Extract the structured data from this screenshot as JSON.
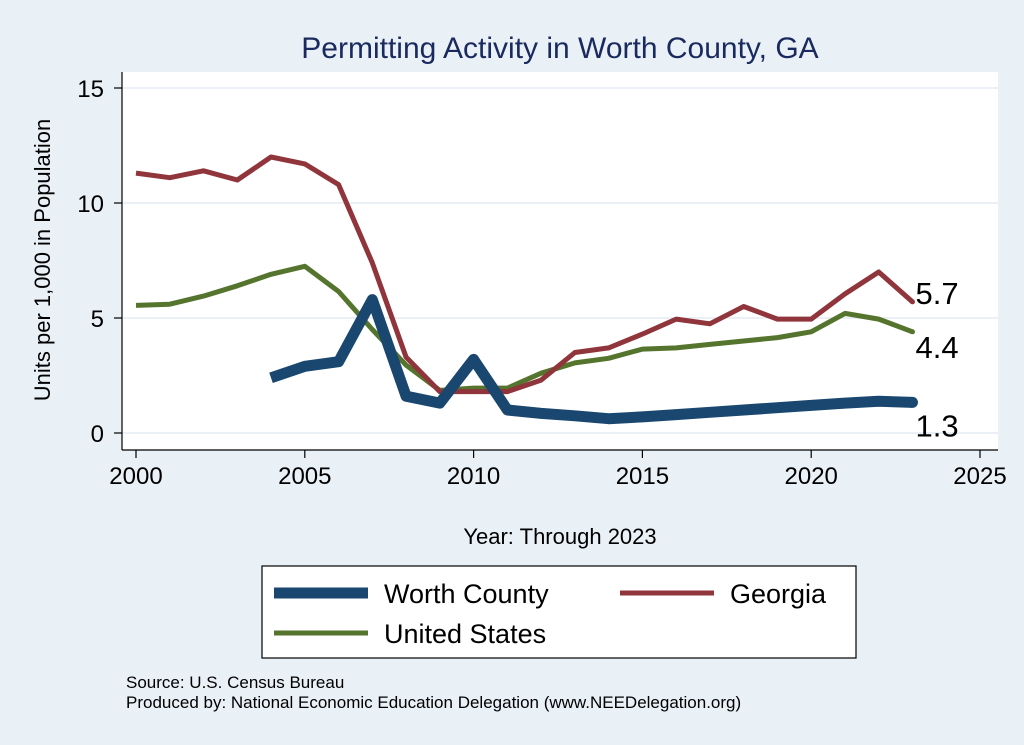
{
  "chart_data": {
    "type": "line",
    "title": "Permitting Activity in Worth County, GA",
    "xlabel": "Year: Through 2023",
    "ylabel": "Units per 1,000 in Population",
    "xlim": [
      2000,
      2025
    ],
    "ylim": [
      0,
      15
    ],
    "xticks": [
      "2000",
      "2005",
      "2010",
      "2015",
      "2020",
      "2025"
    ],
    "yticks": [
      "0",
      "5",
      "10",
      "15"
    ],
    "grid": "horizontal",
    "legend_position": "bottom",
    "series": [
      {
        "name": "Worth County",
        "color": "#1a476f",
        "x": [
          2004,
          2005,
          2006,
          2007,
          2008,
          2009,
          2010,
          2011,
          2012,
          2013,
          2014,
          2015,
          2016,
          2017,
          2018,
          2019,
          2020,
          2021,
          2022,
          2023
        ],
        "values": [
          2.4,
          2.9,
          3.1,
          5.8,
          1.6,
          1.3,
          3.2,
          1.0,
          0.85,
          0.75,
          0.62,
          0.7,
          0.8,
          0.9,
          1.0,
          1.1,
          1.2,
          1.3,
          1.38,
          1.33
        ],
        "end_label": "1.3"
      },
      {
        "name": "Georgia",
        "color": "#90353b",
        "x": [
          2000,
          2001,
          2002,
          2003,
          2004,
          2005,
          2006,
          2007,
          2008,
          2009,
          2010,
          2011,
          2012,
          2013,
          2014,
          2015,
          2016,
          2017,
          2018,
          2019,
          2020,
          2021,
          2022,
          2023
        ],
        "values": [
          11.3,
          11.1,
          11.4,
          11.0,
          12.0,
          11.7,
          10.8,
          7.4,
          3.3,
          1.8,
          1.8,
          1.8,
          2.3,
          3.5,
          3.7,
          4.3,
          4.95,
          4.75,
          5.5,
          4.95,
          4.95,
          6.05,
          7.0,
          5.7
        ],
        "end_label": "5.7"
      },
      {
        "name": "United States",
        "color": "#55752f",
        "x": [
          2000,
          2001,
          2002,
          2003,
          2004,
          2005,
          2006,
          2007,
          2008,
          2009,
          2010,
          2011,
          2012,
          2013,
          2014,
          2015,
          2016,
          2017,
          2018,
          2019,
          2020,
          2021,
          2022,
          2023
        ],
        "values": [
          5.55,
          5.6,
          5.95,
          6.4,
          6.9,
          7.25,
          6.15,
          4.5,
          2.95,
          1.85,
          1.95,
          1.95,
          2.6,
          3.05,
          3.25,
          3.65,
          3.7,
          3.85,
          4.0,
          4.15,
          4.4,
          5.2,
          4.95,
          4.4
        ],
        "end_label": "4.4"
      }
    ],
    "source": "Source: U.S. Census Bureau",
    "produced_by": "Produced by: National Economic Education Delegation (www.NEEDelegation.org)"
  }
}
